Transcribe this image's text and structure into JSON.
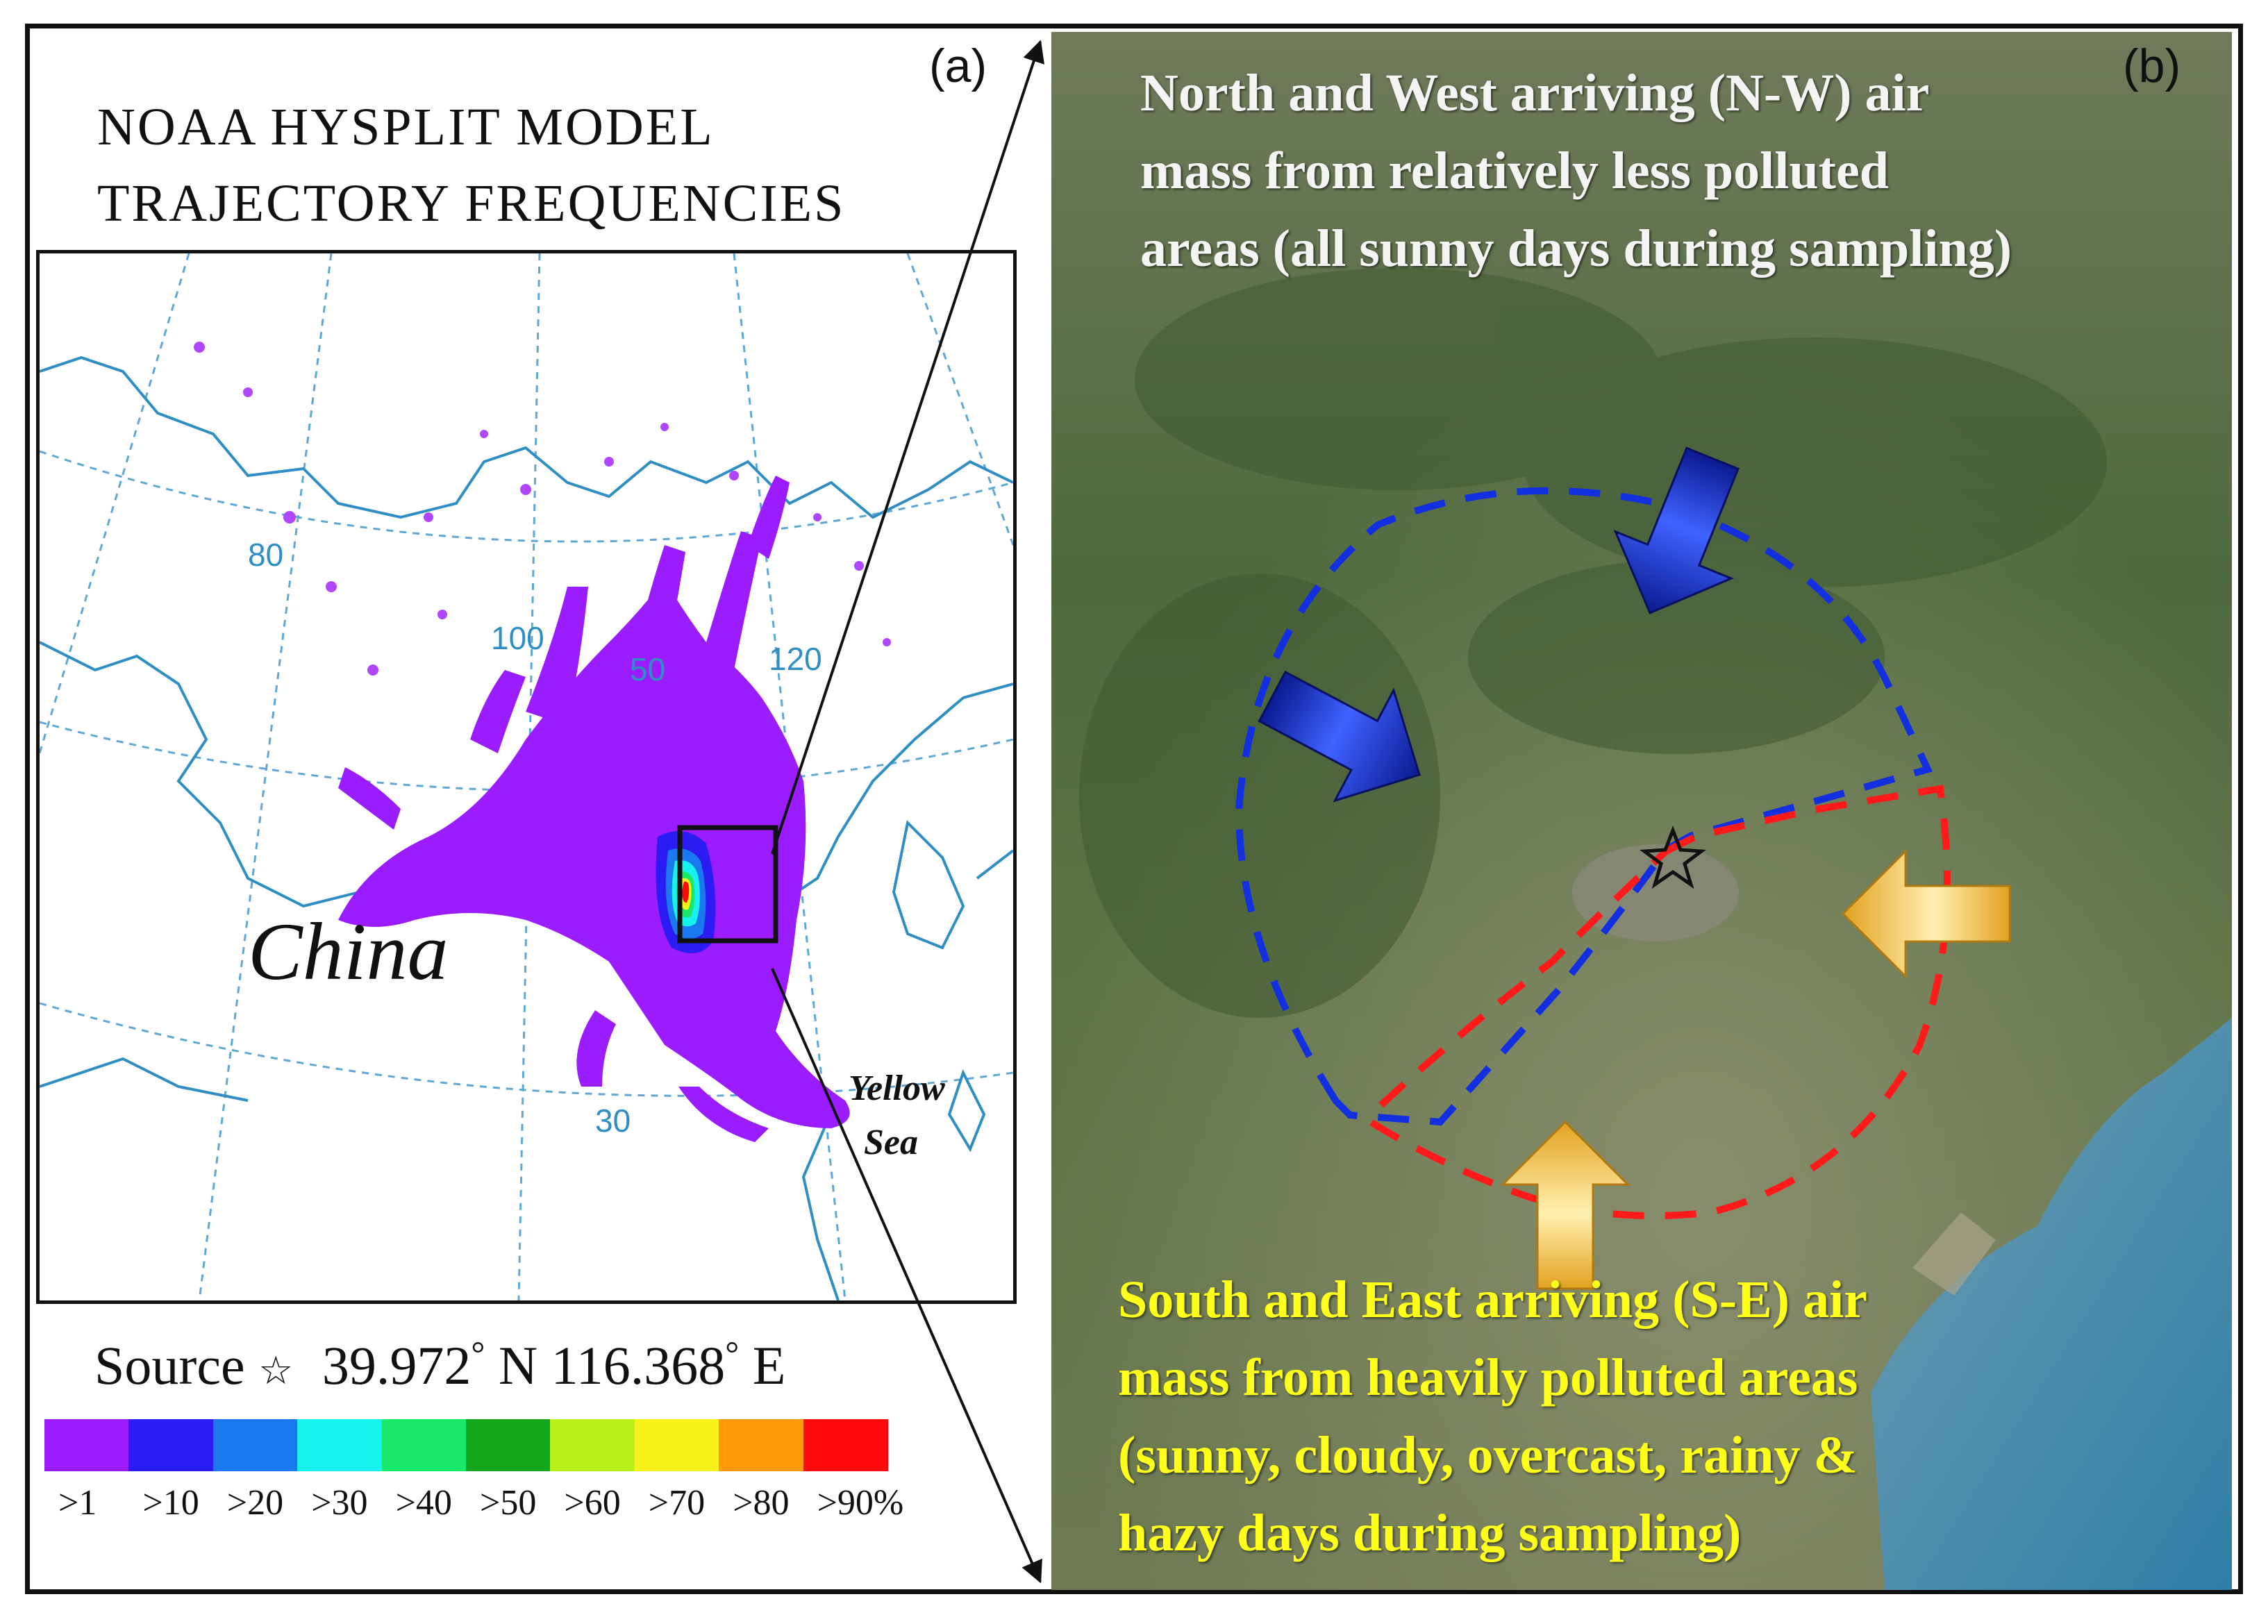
{
  "panel_a": {
    "label": "(a)",
    "title_line1": "NOAA HYSPLIT MODEL",
    "title_line2": "TRAJECTORY FREQUENCIES",
    "country_label": "China",
    "sea_label_line1": "Yellow",
    "sea_label_line2": "Sea",
    "latlon_labels": [
      "80",
      "100",
      "50",
      "120",
      "30"
    ],
    "source": {
      "prefix": "Source",
      "star": "☆",
      "lat": "39.972",
      "deg1": "°",
      "lat_hemi": "N",
      "lon": "116.368",
      "deg2": "°",
      "lon_hemi": "E"
    },
    "legend": {
      "colors": [
        "#9b1cff",
        "#2a1cf2",
        "#1a78f0",
        "#17f2f0",
        "#19e86a",
        "#14a61c",
        "#b9f21a",
        "#f8f21a",
        "#ff9a0a",
        "#ff0a0a"
      ],
      "labels": [
        ">1",
        ">10",
        ">20",
        ">30",
        ">40",
        ">50",
        ">60",
        ">70",
        ">80",
        ">90%"
      ]
    }
  },
  "panel_b": {
    "label": "(b)",
    "nw_text": [
      "North and West arriving (N-W) air",
      "mass from relatively less polluted",
      "areas (all sunny days during sampling)"
    ],
    "se_text": [
      "South and East arriving (S-E) air",
      "mass from heavily polluted areas",
      "(sunny, cloudy, overcast, rainy &",
      "hazy days during sampling)"
    ],
    "colors": {
      "nw_text": "#f4f4f4",
      "se_text": "#ffff1a",
      "nw_boundary": "#1230e0",
      "se_boundary": "#ff1a1a",
      "nw_arrow": "#1024b8",
      "se_arrow": "#f7c23a"
    }
  }
}
